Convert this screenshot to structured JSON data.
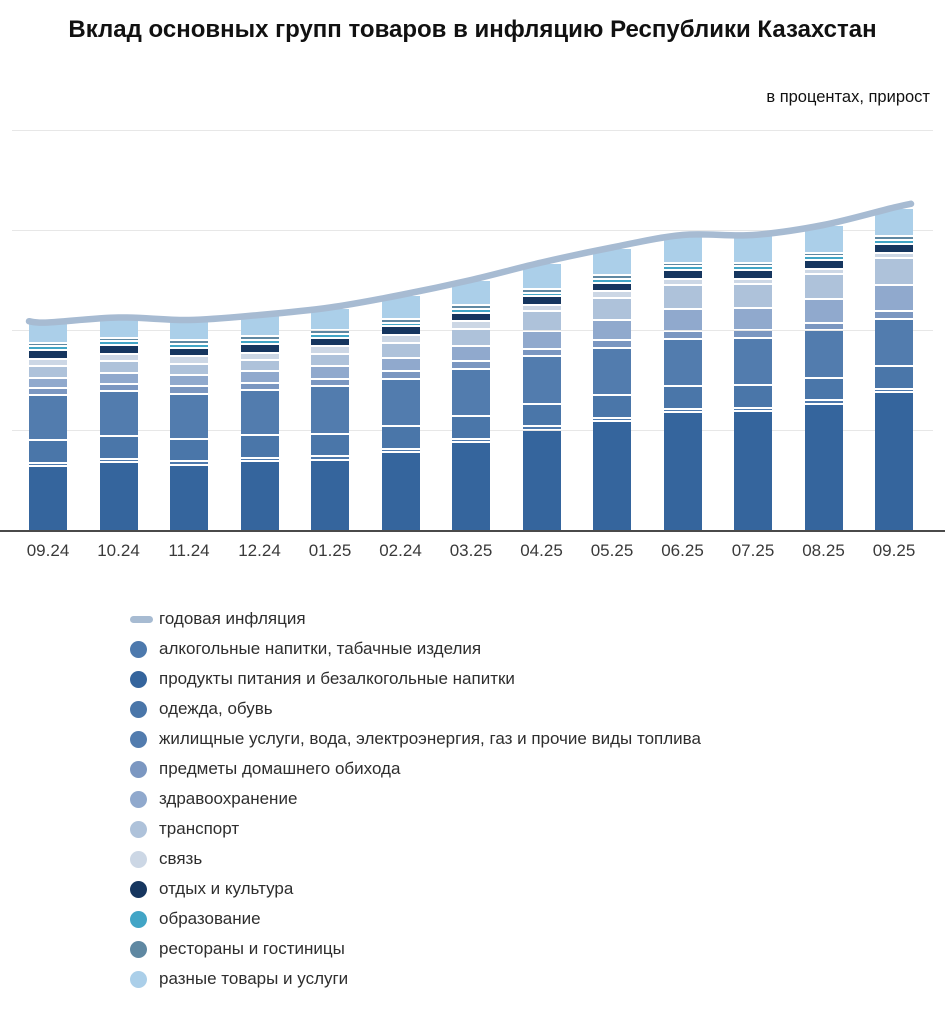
{
  "title": "Вклад основных групп товаров в инфляцию Республики Казахстан",
  "subtitle": "в процентах, прирост",
  "colors": {
    "line": "#a7bbd2",
    "grid": "#e7e7e7",
    "axis": "#4a4a4a",
    "background": "#ffffff"
  },
  "chart_data": {
    "type": "bar",
    "stacked": true,
    "title": "Вклад основных групп товаров в инфляцию Республики Казахстан",
    "subtitle": "в процентах, прирост",
    "xlabel": "",
    "ylabel": "в процентах, прирост",
    "ylim": [
      0,
      16.6
    ],
    "gridline_values": [
      4,
      8,
      12,
      16
    ],
    "grid": true,
    "legend_position": "bottom-left",
    "categories": [
      "09.24",
      "10.24",
      "11.24",
      "12.24",
      "01.25",
      "02.24",
      "03.25",
      "04.25",
      "05.25",
      "06.25",
      "07.25",
      "08.25",
      "09.25"
    ],
    "line_series": {
      "name": "годовая инфляция",
      "color": "#a7bbd2",
      "values": [
        8.3,
        8.5,
        8.4,
        8.6,
        8.9,
        9.4,
        10.0,
        10.7,
        11.3,
        11.8,
        11.8,
        12.2,
        12.9
      ]
    },
    "stack_order": [
      1,
      0,
      2,
      3,
      4,
      5,
      6,
      7,
      8,
      9,
      10,
      11
    ],
    "series": [
      {
        "key": "alcohol",
        "name": "алкогольные напитки, табачные изделия",
        "color": "#4d79ad",
        "values": [
          0.1,
          0.1,
          0.1,
          0.1,
          0.1,
          0.1,
          0.1,
          0.1,
          0.1,
          0.1,
          0.1,
          0.1,
          0.1
        ]
      },
      {
        "key": "food",
        "name": "продукты питания и безалкогольные напитки",
        "color": "#35659d",
        "values": [
          2.6,
          2.75,
          2.65,
          2.8,
          2.85,
          3.15,
          3.55,
          4.05,
          4.4,
          4.75,
          4.8,
          5.1,
          5.55
        ]
      },
      {
        "key": "clothing",
        "name": "одежда, обувь",
        "color": "#4a76a9",
        "values": [
          0.9,
          0.9,
          0.9,
          0.9,
          0.9,
          0.9,
          0.9,
          0.9,
          0.9,
          0.9,
          0.9,
          0.9,
          0.9
        ]
      },
      {
        "key": "housing",
        "name": "жилищные услуги, вода, электроэнергия, газ и прочие виды топлива",
        "color": "#527cae",
        "values": [
          1.8,
          1.8,
          1.8,
          1.8,
          1.9,
          1.9,
          1.9,
          1.9,
          1.9,
          1.9,
          1.9,
          1.9,
          1.9
        ]
      },
      {
        "key": "household",
        "name": "предметы домашнего обихода",
        "color": "#7b97c1",
        "values": [
          0.3,
          0.3,
          0.3,
          0.3,
          0.3,
          0.3,
          0.3,
          0.3,
          0.3,
          0.3,
          0.3,
          0.3,
          0.3
        ]
      },
      {
        "key": "health",
        "name": "здравоохранение",
        "color": "#90a9cd",
        "values": [
          0.4,
          0.45,
          0.45,
          0.45,
          0.5,
          0.55,
          0.6,
          0.7,
          0.8,
          0.9,
          0.9,
          0.95,
          1.05
        ]
      },
      {
        "key": "transport",
        "name": "транспорт",
        "color": "#aec2da",
        "values": [
          0.45,
          0.45,
          0.45,
          0.45,
          0.5,
          0.6,
          0.7,
          0.8,
          0.9,
          0.95,
          0.95,
          1.0,
          1.1
        ]
      },
      {
        "key": "communication",
        "name": "связь",
        "color": "#ccd7e5",
        "values": [
          0.3,
          0.3,
          0.3,
          0.3,
          0.3,
          0.3,
          0.3,
          0.25,
          0.25,
          0.25,
          0.2,
          0.2,
          0.2
        ]
      },
      {
        "key": "recreation",
        "name": "отдых и культура",
        "color": "#16365f",
        "values": [
          0.35,
          0.35,
          0.35,
          0.35,
          0.35,
          0.35,
          0.35,
          0.35,
          0.35,
          0.35,
          0.35,
          0.35,
          0.35
        ]
      },
      {
        "key": "education",
        "name": "образование",
        "color": "#42a5c6",
        "values": [
          0.15,
          0.15,
          0.15,
          0.15,
          0.15,
          0.15,
          0.15,
          0.15,
          0.15,
          0.15,
          0.15,
          0.15,
          0.15
        ]
      },
      {
        "key": "restaurants",
        "name": "рестораны и гостиницы",
        "color": "#5f88a2",
        "values": [
          0.15,
          0.15,
          0.15,
          0.15,
          0.15,
          0.15,
          0.15,
          0.15,
          0.15,
          0.15,
          0.15,
          0.15,
          0.15
        ]
      },
      {
        "key": "misc",
        "name": "разные товары и услуги",
        "color": "#abcfe9",
        "values": [
          0.8,
          0.8,
          0.8,
          0.85,
          0.9,
          0.95,
          1.0,
          1.05,
          1.1,
          1.1,
          1.1,
          1.1,
          1.15
        ]
      }
    ]
  }
}
